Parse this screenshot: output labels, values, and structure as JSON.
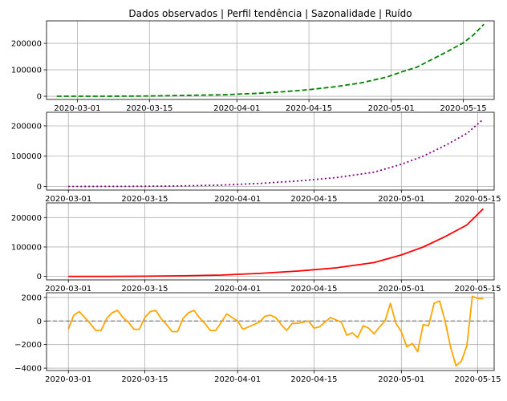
{
  "title": "Dados observados  |  Perfil tendência   |  Sazonalidade   |  Ruído",
  "colors": {
    "observed": "#008000",
    "trend": "#800080",
    "seasonal": "#ff0000",
    "residual": "#ffa500",
    "grid": "#b0b0b0",
    "zero_line": "#808080"
  },
  "chart_data": [
    {
      "type": "line",
      "name_key": "observed",
      "line_style": "dashed",
      "grid": true,
      "xlim": [
        "2020-02-24",
        "2020-05-21"
      ],
      "ylim": [
        -12000,
        285000
      ],
      "x_ticks": [
        "2020-03-01",
        "2020-03-15",
        "2020-04-01",
        "2020-04-15",
        "2020-05-01",
        "2020-05-15"
      ],
      "y_ticks": [
        0,
        100000,
        200000
      ],
      "x": [
        "2020-02-26",
        "2020-03-01",
        "2020-03-05",
        "2020-03-10",
        "2020-03-15",
        "2020-03-20",
        "2020-03-25",
        "2020-03-30",
        "2020-04-01",
        "2020-04-05",
        "2020-04-10",
        "2020-04-15",
        "2020-04-20",
        "2020-04-25",
        "2020-04-30",
        "2020-05-03",
        "2020-05-06",
        "2020-05-09",
        "2020-05-12",
        "2020-05-15",
        "2020-05-17",
        "2020-05-19"
      ],
      "values": [
        0,
        0,
        100,
        300,
        1000,
        2500,
        4300,
        6000,
        8000,
        11000,
        17000,
        25000,
        36000,
        50000,
        72000,
        92000,
        110000,
        140000,
        170000,
        202000,
        232000,
        272000
      ]
    },
    {
      "type": "line",
      "name_key": "trend",
      "line_style": "dotted",
      "grid": true,
      "xlim": [
        "2020-02-26",
        "2020-05-18"
      ],
      "ylim": [
        -12000,
        245000
      ],
      "x_ticks": [
        "2020-03-01",
        "2020-03-15",
        "2020-04-01",
        "2020-04-15",
        "2020-05-01",
        "2020-05-15"
      ],
      "y_ticks": [
        0,
        100000,
        200000
      ],
      "x": [
        "2020-03-01",
        "2020-03-08",
        "2020-03-15",
        "2020-03-22",
        "2020-03-29",
        "2020-04-05",
        "2020-04-12",
        "2020-04-19",
        "2020-04-26",
        "2020-05-01",
        "2020-05-05",
        "2020-05-09",
        "2020-05-13",
        "2020-05-16"
      ],
      "values": [
        0,
        100,
        500,
        1800,
        4500,
        10000,
        18000,
        29000,
        47000,
        73000,
        100000,
        135000,
        175000,
        222000
      ]
    },
    {
      "type": "line",
      "name_key": "seasonal",
      "line_style": "solid",
      "grid": true,
      "xlim": [
        "2020-02-26",
        "2020-05-18"
      ],
      "ylim": [
        -12000,
        250000
      ],
      "x_ticks": [
        "2020-03-01",
        "2020-03-15",
        "2020-04-01",
        "2020-04-15",
        "2020-05-01",
        "2020-05-15"
      ],
      "y_ticks": [
        0,
        100000,
        200000
      ],
      "x": [
        "2020-03-01",
        "2020-03-08",
        "2020-03-15",
        "2020-03-22",
        "2020-03-29",
        "2020-04-05",
        "2020-04-12",
        "2020-04-19",
        "2020-04-26",
        "2020-05-01",
        "2020-05-05",
        "2020-05-09",
        "2020-05-13",
        "2020-05-16"
      ],
      "values": [
        0,
        100,
        500,
        1800,
        4500,
        10000,
        18000,
        29000,
        47000,
        73000,
        100000,
        135000,
        175000,
        230000
      ]
    },
    {
      "type": "line",
      "name_key": "residual",
      "line_style": "solid",
      "grid": true,
      "zero_line": true,
      "xlim": [
        "2020-02-26",
        "2020-05-18"
      ],
      "ylim": [
        -4200,
        2400
      ],
      "x_ticks": [
        "2020-03-01",
        "2020-03-15",
        "2020-04-01",
        "2020-04-15",
        "2020-05-01",
        "2020-05-15"
      ],
      "y_ticks": [
        2000,
        0,
        -2000,
        -4000
      ],
      "x": [
        "2020-03-01",
        "2020-03-02",
        "2020-03-03",
        "2020-03-04",
        "2020-03-05",
        "2020-03-06",
        "2020-03-07",
        "2020-03-08",
        "2020-03-09",
        "2020-03-10",
        "2020-03-11",
        "2020-03-12",
        "2020-03-13",
        "2020-03-14",
        "2020-03-15",
        "2020-03-16",
        "2020-03-17",
        "2020-03-18",
        "2020-03-19",
        "2020-03-20",
        "2020-03-21",
        "2020-03-22",
        "2020-03-23",
        "2020-03-24",
        "2020-03-25",
        "2020-03-26",
        "2020-03-27",
        "2020-03-28",
        "2020-03-29",
        "2020-03-30",
        "2020-03-31",
        "2020-04-01",
        "2020-04-02",
        "2020-04-03",
        "2020-04-04",
        "2020-04-05",
        "2020-04-06",
        "2020-04-07",
        "2020-04-08",
        "2020-04-09",
        "2020-04-10",
        "2020-04-11",
        "2020-04-12",
        "2020-04-13",
        "2020-04-14",
        "2020-04-15",
        "2020-04-16",
        "2020-04-17",
        "2020-04-18",
        "2020-04-19",
        "2020-04-20",
        "2020-04-21",
        "2020-04-22",
        "2020-04-23",
        "2020-04-24",
        "2020-04-25",
        "2020-04-26",
        "2020-04-27",
        "2020-04-28",
        "2020-04-29",
        "2020-04-30",
        "2020-05-01",
        "2020-05-02",
        "2020-05-03",
        "2020-05-04",
        "2020-05-05",
        "2020-05-06",
        "2020-05-07",
        "2020-05-08",
        "2020-05-09",
        "2020-05-10",
        "2020-05-11",
        "2020-05-12",
        "2020-05-13",
        "2020-05-14",
        "2020-05-15",
        "2020-05-16"
      ],
      "values": [
        -700,
        500,
        800,
        300,
        -200,
        -800,
        -800,
        200,
        700,
        900,
        300,
        -100,
        -700,
        -700,
        300,
        800,
        900,
        200,
        -300,
        -900,
        -900,
        200,
        700,
        900,
        300,
        -200,
        -800,
        -800,
        -100,
        600,
        300,
        0,
        -700,
        -500,
        -300,
        -100,
        400,
        500,
        300,
        -300,
        -800,
        -200,
        -200,
        -100,
        0,
        -600,
        -500,
        -100,
        300,
        100,
        -100,
        -1200,
        -1000,
        -1400,
        -400,
        -600,
        -1100,
        -500,
        0,
        1500,
        -200,
        -900,
        -2200,
        -1900,
        -2600,
        -300,
        -400,
        1500,
        1700,
        0,
        -2200,
        -3800,
        -3400,
        -2100,
        2100,
        1900,
        1900
      ]
    }
  ]
}
